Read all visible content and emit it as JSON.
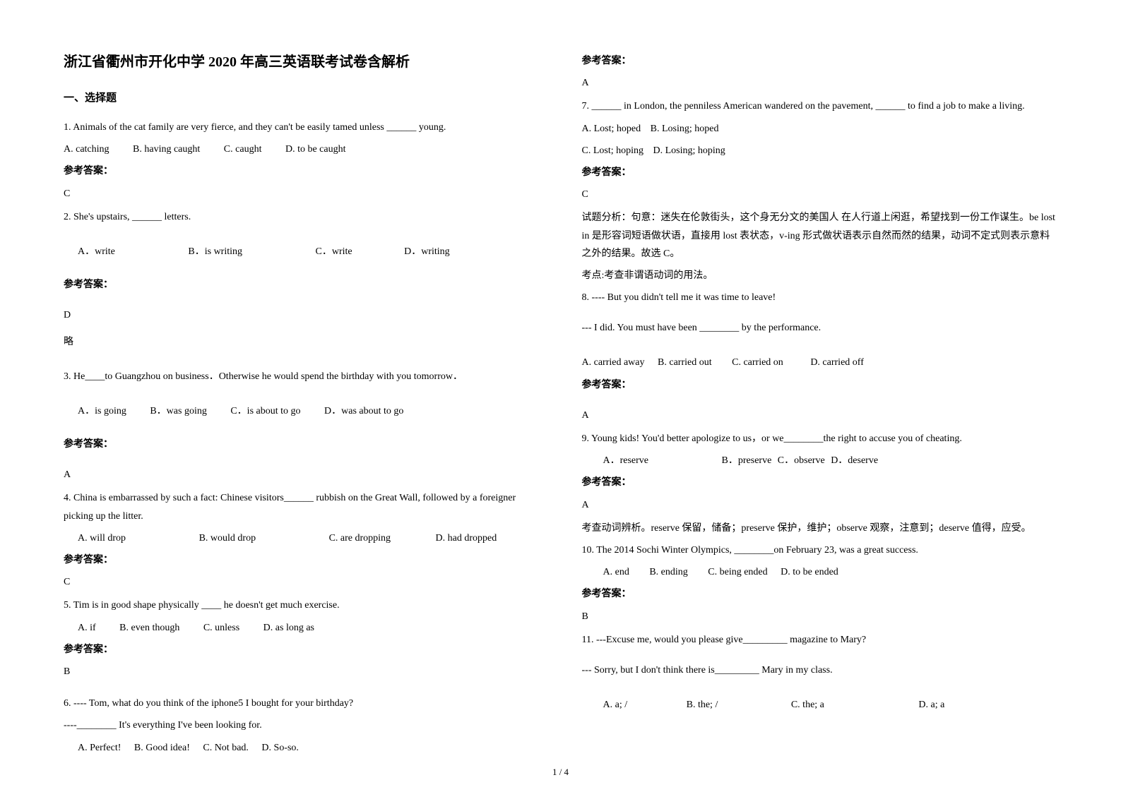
{
  "title": "浙江省衢州市开化中学 2020 年高三英语联考试卷含解析",
  "section1_header": "一、选择题",
  "q1": {
    "text": "1. Animals of the cat family are very fierce, and they can't be easily tamed unless ______ young.",
    "optA": "A. catching",
    "optB": "B. having caught",
    "optC": "C. caught",
    "optD": "D. to be caught",
    "answer_label": "参考答案：",
    "answer": "C"
  },
  "q2": {
    "text": "2. She's upstairs, ______ letters.",
    "optA": "A．write",
    "optB": "B．is writing",
    "optC": "C．write",
    "optD": "D．writing",
    "answer_label": "参考答案：",
    "answer": "D",
    "omit": "略"
  },
  "q3": {
    "text": "3. He____to Guangzhou on business．Otherwise he would spend the birthday  with you tomorrow．",
    "optA": "A．is going",
    "optB": "B．was going",
    "optC": "C．is about to go",
    "optD": "D．was about to go",
    "answer_label": "参考答案：",
    "answer": "A"
  },
  "q4": {
    "text": "4. China is embarrassed by such a fact: Chinese visitors______ rubbish on the Great Wall, followed by a foreigner picking up the litter.",
    "optA": "A. will drop",
    "optB": "B. would drop",
    "optC": "C. are dropping",
    "optD": "D. had dropped",
    "answer_label": "参考答案：",
    "answer": "C"
  },
  "q5": {
    "text": " 5.  Tim is in good shape physically ____ he doesn't get much exercise.",
    "optA": "A. if",
    "optB": "B. even though",
    "optC": "C. unless",
    "optD": "D. as long as",
    "answer_label": "参考答案：",
    "answer": "B"
  },
  "q6": {
    "text": "6. ---- Tom, what do you think of the iphone5 I bought for your birthday?",
    "text2": "   ----________ It's everything I've been looking for.",
    "optA": "A. Perfect!",
    "optB": "B. Good idea!",
    "optC": "C. Not bad.",
    "optD": "D. So-so.",
    "answer_label": "参考答案：",
    "answer": "A"
  },
  "q7": {
    "text": "7. ______ in London, the penniless American wandered on the pavement, ______ to find a job to make a living.",
    "optA": "A. Lost; hoped",
    "optB": "B. Losing; hoped",
    "optC": "C. Lost; hoping",
    "optD": "D. Losing; hoping",
    "answer_label": "参考答案：",
    "answer": "C",
    "analysis1": "试题分析：句意：迷失在伦敦街头，这个身无分文的美国人 在人行道上闲逛，希望找到一份工作谋生。be lost in 是形容词短语做状语，直接用 lost 表状态，v-ing 形式做状语表示自然而然的结果，动词不定式则表示意料之外的结果。故选 C。",
    "analysis2": "考点:考查非谓语动词的用法。"
  },
  "q8": {
    "text": "8.  ---- But you didn't tell me it was time to leave!",
    "text2": "--- I did. You must have been ________ by the performance.",
    "optA": "A. carried away",
    "optB": "B. carried out",
    "optC": "C. carried on",
    "optD": "D. carried off",
    "answer_label": "参考答案：",
    "answer": "A"
  },
  "q9": {
    "text": "9. Young kids! You'd better apologize to us，or we________the right to accuse you of cheating.",
    "optA": "A．reserve",
    "optB": "B．preserve",
    "optC": "C．observe",
    "optD": "D．deserve",
    "answer_label": "参考答案：",
    "answer": "A",
    "analysis": "  考查动词辨析。reserve 保留，储备；preserve 保护，维护；observe 观察，注意到；deserve 值得，应受。"
  },
  "q10": {
    "text": "10. The 2014 Sochi Winter Olympics, ________on February 23, was a great success.",
    "optA": "A. end",
    "optB": "B. ending",
    "optC": "C. being ended",
    "optD": "D. to be ended",
    "answer_label": "参考答案：",
    "answer": "B"
  },
  "q11": {
    "text": "11. ---Excuse me, would you please give_________ magazine to Mary?",
    "text2": " --- Sorry, but I don't think there is_________ Mary in my class.",
    "optA": "A. a; /",
    "optB": "B. the; /",
    "optC": "C. the; a",
    "optD": "D. a; a"
  },
  "page_num": "1 / 4"
}
